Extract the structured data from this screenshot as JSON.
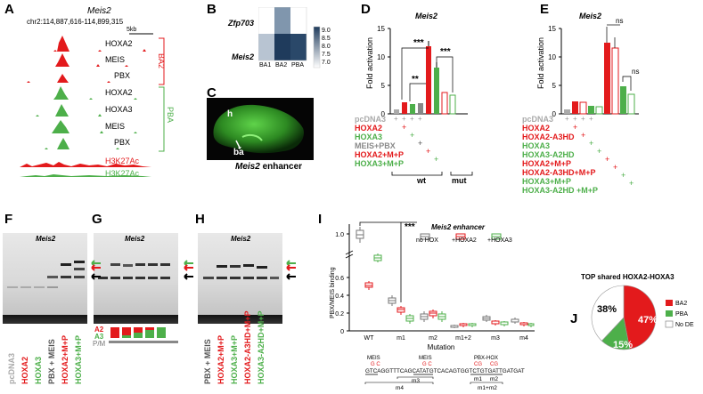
{
  "panel_letters": {
    "A": "A",
    "B": "B",
    "C": "C",
    "D": "D",
    "E": "E",
    "F": "F",
    "G": "G",
    "H": "H",
    "I": "I",
    "J": "J"
  },
  "colors": {
    "red": "#e31a1c",
    "green": "#4daf4a",
    "gray": "#999999",
    "dark": "#333333"
  },
  "panel_a": {
    "gene": "Meis2",
    "locus": "chr2:114,887,616-114,899,315",
    "scale": "5kb",
    "ba2_tracks": [
      "HOXA2",
      "MEIS",
      "PBX"
    ],
    "pba_tracks": [
      "HOXA2",
      "HOXA3",
      "MEIS",
      "PBX"
    ],
    "h3k_tracks": [
      "H3K27Ac",
      "H3K27Ac"
    ],
    "ba2_label": "BA2",
    "pba_label": "PBA"
  },
  "panel_b": {
    "rows": [
      "Zfp703",
      "Meis2"
    ],
    "cols": [
      "BA1",
      "BA2",
      "PBA"
    ],
    "scale_ticks": [
      "9.0",
      "8.5",
      "8.0",
      "7.5",
      "7.0"
    ]
  },
  "panel_c": {
    "label_h": "h",
    "label_ba": "ba",
    "caption_gene": "Meis2",
    "caption_rest": " enhancer"
  },
  "panel_d": {
    "title": "Meis2",
    "ylabel": "Fold activation",
    "yticks": [
      "0",
      "5",
      "10",
      "15"
    ],
    "sig": [
      "***",
      "**",
      "***"
    ],
    "rows": [
      {
        "label": "pcDNA3",
        "color": "#aaaaaa"
      },
      {
        "label": "HOXA2",
        "color": "#e31a1c"
      },
      {
        "label": "HOXA3",
        "color": "#4daf4a"
      },
      {
        "label": "MEIS+PBX",
        "color": "#888888"
      },
      {
        "label": "HOXA2+M+P",
        "color": "#e31a1c"
      },
      {
        "label": "HOXA3+M+P",
        "color": "#4daf4a"
      }
    ],
    "group_wt": "wt",
    "group_mut": "mut"
  },
  "panel_e": {
    "title": "Meis2",
    "ylabel": "Fold activation",
    "yticks": [
      "0",
      "5",
      "10",
      "15"
    ],
    "ns": [
      "ns",
      "ns"
    ],
    "rows": [
      {
        "label": "pcDNA3",
        "color": "#aaaaaa"
      },
      {
        "label": "HOXA2",
        "color": "#e31a1c"
      },
      {
        "label": "HOXA2-A3HD",
        "color": "#e31a1c"
      },
      {
        "label": "HOXA3",
        "color": "#4daf4a"
      },
      {
        "label": "HOXA3-A2HD",
        "color": "#4daf4a"
      },
      {
        "label": "HOXA2+M+P",
        "color": "#e31a1c"
      },
      {
        "label": "HOXA2-A3HD+M+P",
        "color": "#e31a1c"
      },
      {
        "label": "HOXA3+M+P",
        "color": "#4daf4a"
      },
      {
        "label": "HOXA3-A2HD +M+P",
        "color": "#4daf4a"
      }
    ]
  },
  "gels": {
    "title": "Meis2",
    "f_lanes": [
      {
        "label": "pcDNA3",
        "color": "#aaaaaa"
      },
      {
        "label": "HOXA2",
        "color": "#e31a1c"
      },
      {
        "label": "HOXA3",
        "color": "#4daf4a"
      },
      {
        "label": "PBX + MEIS",
        "color": "#555555"
      },
      {
        "label": "HOXA2+M+P",
        "color": "#e31a1c"
      },
      {
        "label": "HOXA3+M+P",
        "color": "#4daf4a"
      }
    ],
    "g_legend": [
      "A2",
      "A3",
      "P/M"
    ],
    "h_lanes": [
      {
        "label": "PBX + MEIS",
        "color": "#555555"
      },
      {
        "label": "HOXA2+M+P",
        "color": "#e31a1c"
      },
      {
        "label": "HOXA3+M+P",
        "color": "#4daf4a"
      },
      {
        "label": "HOXA2-A3HD+M+P",
        "color": "#e31a1c"
      },
      {
        "label": "HOXA3-A2HD+M+P",
        "color": "#4daf4a"
      }
    ]
  },
  "panel_i": {
    "legend_title": "Meis2 enhancer",
    "legend": [
      "no HOX",
      "+HOXA2",
      "+HOXA3"
    ],
    "ylabel": "PBX/MEIS binding",
    "yticks": [
      "0",
      "0.2",
      "0.4",
      "0.6",
      "1.0"
    ],
    "xlabel": "Mutation",
    "categories": [
      "WT",
      "m1",
      "m2",
      "m1+2",
      "m3",
      "m4"
    ],
    "sig": "***",
    "seq_labels": [
      "MEIS",
      "MEIS",
      "PBX-HOX"
    ],
    "seq_muts": [
      "G C",
      "G C",
      "CG",
      "CG"
    ],
    "sequence": "GTCAGGTTTCAGCATATGTCACAGTGGTCTGTGATTGATGAT",
    "mut_labels": [
      "m3",
      "m1",
      "m2",
      "m1+m2",
      "m4"
    ]
  },
  "panel_j": {
    "title": "TOP shared HOXA2-HOXA3",
    "slices": [
      {
        "name": "BA2",
        "value": 47,
        "label": "47%",
        "color": "#e31a1c"
      },
      {
        "name": "PBA",
        "value": 15,
        "label": "15%",
        "color": "#4daf4a"
      },
      {
        "name": "No DE",
        "value": 38,
        "label": "38%",
        "color": "#ffffff"
      }
    ]
  }
}
